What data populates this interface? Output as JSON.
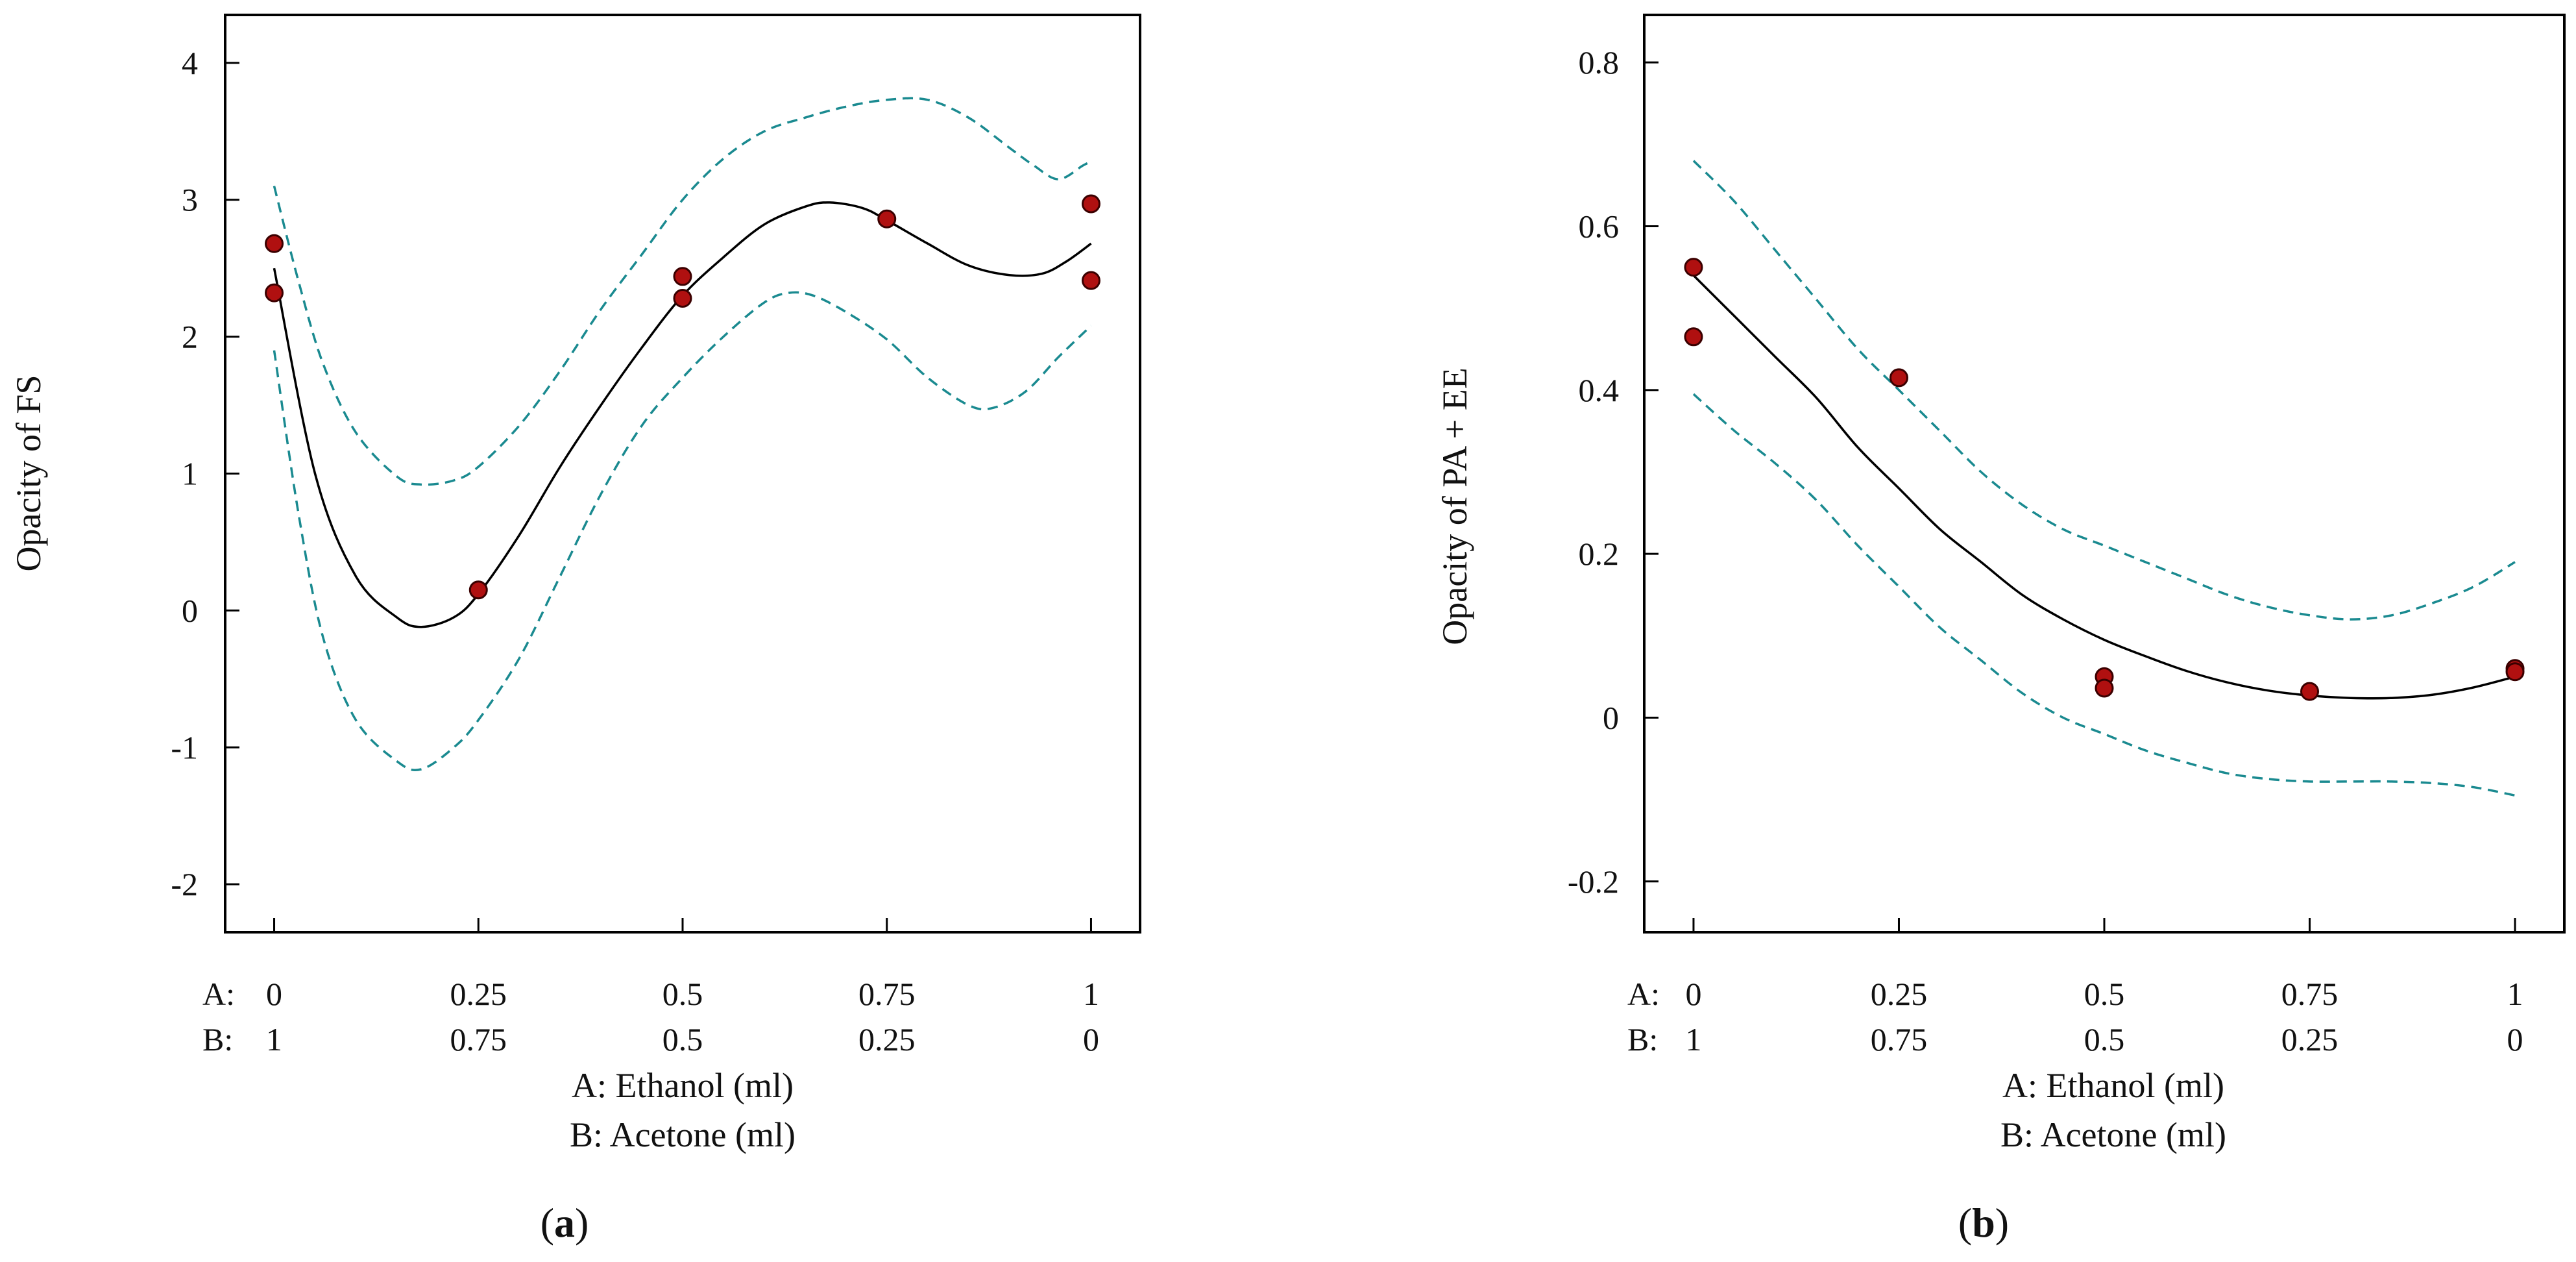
{
  "colors": {
    "fit_line": "#000000",
    "confidence_band": "#1a8a90",
    "design_points": "#b01010",
    "axes": "#000000"
  },
  "chart_data": [
    {
      "type": "line",
      "panel_label_open": "(",
      "panel_label_letter": "a",
      "panel_label_close": ")",
      "ylabel": "Opacity of FS",
      "xlabel_a": "A: Ethanol (ml)",
      "xlabel_b": "B: Acetone (ml)",
      "row_a_label": "A:",
      "row_b_label": "B:",
      "x_values": [
        0,
        0.25,
        0.5,
        0.75,
        1
      ],
      "x_ticks_a": [
        "0",
        "0.25",
        "0.5",
        "0.75",
        "1"
      ],
      "x_ticks_b": [
        "1",
        "0.75",
        "0.5",
        "0.25",
        "0"
      ],
      "xlim": [
        -0.06,
        1.06
      ],
      "ylim": [
        -2.35,
        4.35
      ],
      "y_ticks": [
        -2,
        -1,
        0,
        1,
        2,
        3,
        4
      ],
      "y_tick_labels": [
        "-2",
        "-1",
        "0",
        "1",
        "2",
        "3",
        "4"
      ],
      "series": [
        {
          "name": "fitted",
          "style": "solid",
          "points": [
            [
              0,
              2.5
            ],
            [
              0.05,
              1.0
            ],
            [
              0.1,
              0.25
            ],
            [
              0.15,
              -0.05
            ],
            [
              0.18,
              -0.12
            ],
            [
              0.22,
              -0.05
            ],
            [
              0.25,
              0.12
            ],
            [
              0.3,
              0.55
            ],
            [
              0.35,
              1.05
            ],
            [
              0.4,
              1.5
            ],
            [
              0.45,
              1.92
            ],
            [
              0.5,
              2.3
            ],
            [
              0.55,
              2.58
            ],
            [
              0.6,
              2.82
            ],
            [
              0.65,
              2.95
            ],
            [
              0.68,
              2.98
            ],
            [
              0.72,
              2.94
            ],
            [
              0.75,
              2.85
            ],
            [
              0.8,
              2.68
            ],
            [
              0.85,
              2.52
            ],
            [
              0.9,
              2.45
            ],
            [
              0.94,
              2.46
            ],
            [
              0.97,
              2.55
            ],
            [
              1.0,
              2.68
            ]
          ]
        },
        {
          "name": "upper CI",
          "style": "dashed",
          "points": [
            [
              0,
              3.1
            ],
            [
              0.03,
              2.4
            ],
            [
              0.06,
              1.8
            ],
            [
              0.1,
              1.3
            ],
            [
              0.15,
              0.98
            ],
            [
              0.18,
              0.92
            ],
            [
              0.22,
              0.95
            ],
            [
              0.25,
              1.05
            ],
            [
              0.3,
              1.35
            ],
            [
              0.35,
              1.75
            ],
            [
              0.4,
              2.2
            ],
            [
              0.45,
              2.6
            ],
            [
              0.5,
              3.0
            ],
            [
              0.55,
              3.3
            ],
            [
              0.6,
              3.5
            ],
            [
              0.65,
              3.6
            ],
            [
              0.7,
              3.68
            ],
            [
              0.75,
              3.73
            ],
            [
              0.8,
              3.73
            ],
            [
              0.85,
              3.6
            ],
            [
              0.9,
              3.38
            ],
            [
              0.93,
              3.25
            ],
            [
              0.96,
              3.15
            ],
            [
              0.99,
              3.25
            ],
            [
              1.0,
              3.28
            ]
          ]
        },
        {
          "name": "lower CI",
          "style": "dashed",
          "points": [
            [
              0,
              1.9
            ],
            [
              0.03,
              0.7
            ],
            [
              0.06,
              -0.2
            ],
            [
              0.1,
              -0.8
            ],
            [
              0.15,
              -1.1
            ],
            [
              0.18,
              -1.16
            ],
            [
              0.22,
              -1.0
            ],
            [
              0.25,
              -0.8
            ],
            [
              0.3,
              -0.35
            ],
            [
              0.35,
              0.25
            ],
            [
              0.4,
              0.85
            ],
            [
              0.45,
              1.35
            ],
            [
              0.5,
              1.7
            ],
            [
              0.55,
              2.0
            ],
            [
              0.6,
              2.25
            ],
            [
              0.63,
              2.32
            ],
            [
              0.66,
              2.3
            ],
            [
              0.7,
              2.18
            ],
            [
              0.75,
              1.98
            ],
            [
              0.8,
              1.7
            ],
            [
              0.85,
              1.5
            ],
            [
              0.88,
              1.48
            ],
            [
              0.92,
              1.6
            ],
            [
              0.96,
              1.85
            ],
            [
              1.0,
              2.08
            ]
          ]
        }
      ],
      "design_points": [
        [
          0,
          2.68
        ],
        [
          0,
          2.32
        ],
        [
          0.25,
          0.15
        ],
        [
          0.5,
          2.44
        ],
        [
          0.5,
          2.28
        ],
        [
          0.75,
          2.86
        ],
        [
          1,
          2.97
        ],
        [
          1,
          2.41
        ]
      ]
    },
    {
      "type": "line",
      "panel_label_open": "(",
      "panel_label_letter": "b",
      "panel_label_close": ")",
      "ylabel": "Opacity of PA + EE",
      "xlabel_a": "A: Ethanol (ml)",
      "xlabel_b": "B: Acetone (ml)",
      "row_a_label": "A:",
      "row_b_label": "B:",
      "x_values": [
        0,
        0.25,
        0.5,
        0.75,
        1
      ],
      "x_ticks_a": [
        "0",
        "0.25",
        "0.5",
        "0.75",
        "1"
      ],
      "x_ticks_b": [
        "1",
        "0.75",
        "0.5",
        "0.25",
        "0"
      ],
      "xlim": [
        -0.06,
        1.06
      ],
      "ylim": [
        -0.262,
        0.858
      ],
      "y_ticks": [
        -0.2,
        0,
        0.2,
        0.4,
        0.6,
        0.8
      ],
      "y_tick_labels": [
        "-0.2",
        "0",
        "0.2",
        "0.4",
        "0.6",
        "0.8"
      ],
      "series": [
        {
          "name": "fitted",
          "style": "solid",
          "points": [
            [
              0,
              0.54
            ],
            [
              0.05,
              0.49
            ],
            [
              0.1,
              0.44
            ],
            [
              0.15,
              0.39
            ],
            [
              0.2,
              0.33
            ],
            [
              0.25,
              0.28
            ],
            [
              0.3,
              0.23
            ],
            [
              0.35,
              0.19
            ],
            [
              0.4,
              0.15
            ],
            [
              0.45,
              0.12
            ],
            [
              0.5,
              0.095
            ],
            [
              0.55,
              0.075
            ],
            [
              0.6,
              0.057
            ],
            [
              0.65,
              0.043
            ],
            [
              0.7,
              0.033
            ],
            [
              0.75,
              0.027
            ],
            [
              0.8,
              0.024
            ],
            [
              0.85,
              0.024
            ],
            [
              0.9,
              0.028
            ],
            [
              0.95,
              0.037
            ],
            [
              1.0,
              0.05
            ]
          ]
        },
        {
          "name": "upper CI",
          "style": "dashed",
          "points": [
            [
              0,
              0.68
            ],
            [
              0.05,
              0.63
            ],
            [
              0.1,
              0.57
            ],
            [
              0.15,
              0.51
            ],
            [
              0.2,
              0.45
            ],
            [
              0.25,
              0.4
            ],
            [
              0.3,
              0.35
            ],
            [
              0.35,
              0.3
            ],
            [
              0.4,
              0.26
            ],
            [
              0.45,
              0.23
            ],
            [
              0.5,
              0.21
            ],
            [
              0.55,
              0.19
            ],
            [
              0.6,
              0.17
            ],
            [
              0.65,
              0.15
            ],
            [
              0.7,
              0.135
            ],
            [
              0.75,
              0.125
            ],
            [
              0.8,
              0.12
            ],
            [
              0.85,
              0.125
            ],
            [
              0.9,
              0.14
            ],
            [
              0.95,
              0.16
            ],
            [
              1.0,
              0.19
            ]
          ]
        },
        {
          "name": "lower CI",
          "style": "dashed",
          "points": [
            [
              0,
              0.395
            ],
            [
              0.05,
              0.35
            ],
            [
              0.1,
              0.31
            ],
            [
              0.15,
              0.265
            ],
            [
              0.2,
              0.21
            ],
            [
              0.25,
              0.16
            ],
            [
              0.3,
              0.11
            ],
            [
              0.35,
              0.07
            ],
            [
              0.4,
              0.03
            ],
            [
              0.45,
              0.0
            ],
            [
              0.5,
              -0.02
            ],
            [
              0.55,
              -0.04
            ],
            [
              0.6,
              -0.055
            ],
            [
              0.65,
              -0.068
            ],
            [
              0.7,
              -0.075
            ],
            [
              0.75,
              -0.078
            ],
            [
              0.8,
              -0.078
            ],
            [
              0.85,
              -0.078
            ],
            [
              0.9,
              -0.08
            ],
            [
              0.95,
              -0.085
            ],
            [
              1.0,
              -0.095
            ]
          ]
        }
      ],
      "design_points": [
        [
          0,
          0.55
        ],
        [
          0,
          0.465
        ],
        [
          0.25,
          0.415
        ],
        [
          0.5,
          0.05
        ],
        [
          0.5,
          0.036
        ],
        [
          0.75,
          0.032
        ],
        [
          1,
          0.06
        ],
        [
          1,
          0.056
        ]
      ]
    }
  ]
}
